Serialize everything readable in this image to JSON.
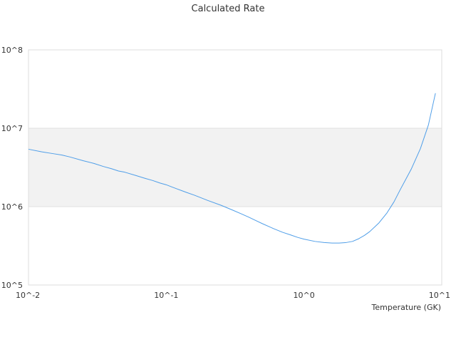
{
  "chart_data": {
    "type": "line",
    "title": "Calculated Rate",
    "xlabel": "Temperature (GK)",
    "ylabel": "",
    "xscale": "log",
    "yscale": "log",
    "xlim": [
      0.01,
      10
    ],
    "ylim": [
      100000,
      100000000
    ],
    "x_ticks": [
      {
        "value": 0.01,
        "label": "10^-2"
      },
      {
        "value": 0.1,
        "label": "10^-1"
      },
      {
        "value": 1,
        "label": "10^0"
      },
      {
        "value": 10,
        "label": "10^1"
      }
    ],
    "y_ticks": [
      {
        "value": 100000,
        "label": "10^5"
      },
      {
        "value": 1000000,
        "label": "10^6"
      },
      {
        "value": 10000000,
        "label": "10^7"
      },
      {
        "value": 100000000,
        "label": "10^8"
      }
    ],
    "grid": "horizontal",
    "band_colors": [
      "#ffffff",
      "#f2f2f2"
    ],
    "series": [
      {
        "color": "#4f9ee8",
        "x": [
          0.01,
          0.0125,
          0.015,
          0.0175,
          0.02,
          0.025,
          0.03,
          0.035,
          0.04,
          0.045,
          0.05,
          0.06,
          0.07,
          0.08,
          0.09,
          0.1,
          0.11,
          0.12,
          0.14,
          0.16,
          0.18,
          0.2,
          0.25,
          0.3,
          0.35,
          0.4,
          0.45,
          0.5,
          0.6,
          0.7,
          0.8,
          0.9,
          1.0,
          1.2,
          1.4,
          1.6,
          1.8,
          2.0,
          2.25,
          2.5,
          2.75,
          3.0,
          3.5,
          4.0,
          4.5,
          5.0,
          6.0,
          7.0,
          8.0,
          9.0
        ],
        "y": [
          5400000,
          5000000,
          4750000,
          4550000,
          4300000,
          3850000,
          3550000,
          3250000,
          3050000,
          2850000,
          2750000,
          2500000,
          2300000,
          2150000,
          2000000,
          1900000,
          1780000,
          1680000,
          1520000,
          1400000,
          1290000,
          1200000,
          1040000,
          910000,
          810000,
          730000,
          660000,
          605000,
          525000,
          470000,
          435000,
          405000,
          385000,
          360000,
          348000,
          343000,
          343000,
          347000,
          360000,
          390000,
          430000,
          480000,
          620000,
          830000,
          1150000,
          1650000,
          3000000,
          5500000,
          11000000,
          28000000
        ]
      }
    ]
  }
}
